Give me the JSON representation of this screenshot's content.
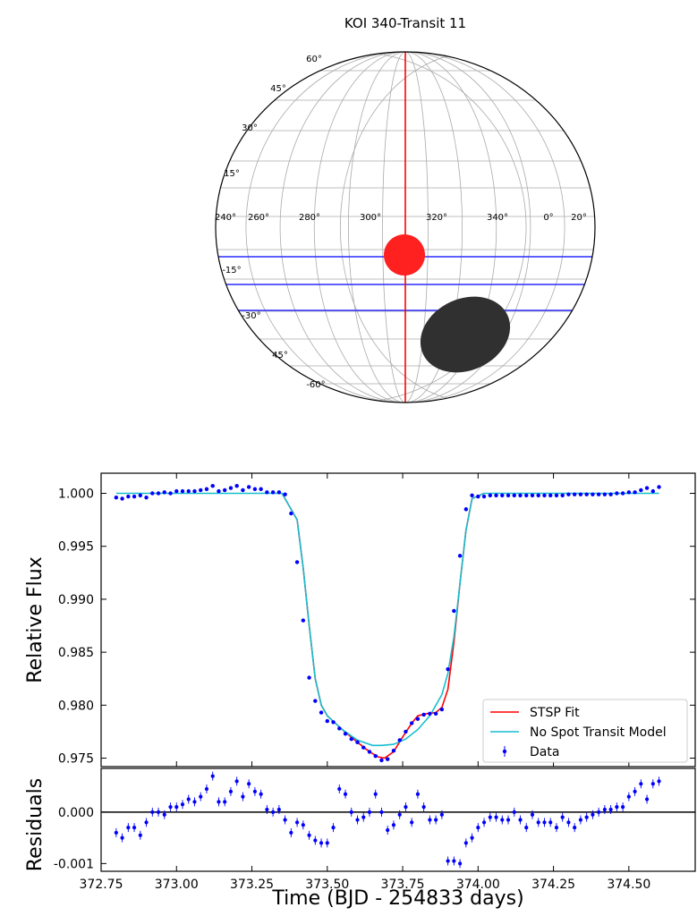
{
  "chart_data": [
    {
      "type": "diagram",
      "title": "KOI 340-Transit 11",
      "longitude_labels": [
        "240°",
        "260°",
        "280°",
        "300°",
        "320°",
        "340°",
        "0°",
        "20°"
      ],
      "latitude_labels": [
        "60°",
        "45°",
        "30°",
        "15°",
        "-15°",
        "-30°",
        "45°",
        "-60°"
      ],
      "colors": {
        "transit_chord": "#ff0000",
        "latitude_bands": "#2a2aff",
        "planet": "#ff2020",
        "spot": "#303030",
        "grid": "#aaaaaa"
      }
    },
    {
      "type": "line",
      "xlabel": "",
      "ylabel": "Relative Flux",
      "xlim": [
        372.75,
        374.72
      ],
      "ylim": [
        0.9742,
        1.0019
      ],
      "yticks": [
        "1.000",
        "0.995",
        "0.990",
        "0.985",
        "0.980",
        "0.975"
      ],
      "legend_position": "bottom-right",
      "series": [
        {
          "name": "STSP Fit",
          "color": "#ff0000",
          "x": [
            373.35,
            373.4,
            373.42,
            373.44,
            373.46,
            373.48,
            373.5,
            373.55,
            373.6,
            373.64,
            373.67,
            373.69,
            373.72,
            373.75,
            373.78,
            373.8,
            373.83,
            373.86,
            373.88,
            373.9,
            373.92,
            373.94,
            373.96,
            373.98,
            374.02
          ],
          "y": [
            1.0,
            0.9975,
            0.993,
            0.9875,
            0.9825,
            0.98,
            0.979,
            0.9777,
            0.9765,
            0.9756,
            0.9751,
            0.975,
            0.9756,
            0.977,
            0.9783,
            0.979,
            0.9792,
            0.9793,
            0.9798,
            0.9815,
            0.986,
            0.9915,
            0.9965,
            0.9995,
            1.0
          ]
        },
        {
          "name": "No Spot Transit Model",
          "color": "#17becf",
          "x": [
            372.8,
            373.35,
            373.4,
            373.42,
            373.44,
            373.46,
            373.48,
            373.5,
            373.55,
            373.6,
            373.65,
            373.68,
            373.72,
            373.76,
            373.8,
            373.84,
            373.88,
            373.9,
            373.92,
            373.94,
            373.96,
            373.98,
            374.02,
            374.6
          ],
          "y": [
            1.0,
            1.0,
            0.9975,
            0.993,
            0.9875,
            0.9825,
            0.98,
            0.979,
            0.9777,
            0.9767,
            0.9762,
            0.9762,
            0.9763,
            0.9768,
            0.9777,
            0.979,
            0.981,
            0.983,
            0.9865,
            0.9915,
            0.9965,
            0.9995,
            1.0,
            1.0
          ]
        },
        {
          "name": "Data",
          "color": "#0000ff",
          "x": [
            372.8,
            372.82,
            372.84,
            372.86,
            372.88,
            372.9,
            372.92,
            372.94,
            372.96,
            372.98,
            373.0,
            373.02,
            373.04,
            373.06,
            373.08,
            373.1,
            373.12,
            373.14,
            373.16,
            373.18,
            373.2,
            373.22,
            373.24,
            373.26,
            373.28,
            373.3,
            373.32,
            373.34,
            373.36,
            373.38,
            373.4,
            373.42,
            373.44,
            373.46,
            373.48,
            373.5,
            373.52,
            373.54,
            373.56,
            373.58,
            373.6,
            373.62,
            373.64,
            373.66,
            373.68,
            373.7,
            373.72,
            373.74,
            373.76,
            373.78,
            373.8,
            373.82,
            373.84,
            373.86,
            373.88,
            373.9,
            373.92,
            373.94,
            373.96,
            373.98,
            374.0,
            374.02,
            374.04,
            374.06,
            374.08,
            374.1,
            374.12,
            374.14,
            374.16,
            374.18,
            374.2,
            374.22,
            374.24,
            374.26,
            374.28,
            374.3,
            374.32,
            374.34,
            374.36,
            374.38,
            374.4,
            374.42,
            374.44,
            374.46,
            374.48,
            374.5,
            374.52,
            374.54,
            374.56,
            374.58,
            374.6
          ],
          "y": [
            0.9996,
            0.9995,
            0.9997,
            0.9997,
            0.9998,
            0.9996,
            1.0,
            1.0,
            1.0001,
            1.0,
            1.0002,
            1.0002,
            1.0002,
            1.0002,
            1.0003,
            1.0004,
            1.0007,
            1.0002,
            1.0003,
            1.0005,
            1.0007,
            1.0003,
            1.0006,
            1.0004,
            1.0004,
            1.0001,
            1.0001,
            1.0001,
            0.9999,
            0.9981,
            0.9935,
            0.988,
            0.9826,
            0.9804,
            0.9793,
            0.9785,
            0.9784,
            0.9778,
            0.9773,
            0.9768,
            0.9765,
            0.976,
            0.9756,
            0.9752,
            0.9748,
            0.9749,
            0.9757,
            0.9767,
            0.9775,
            0.9783,
            0.9787,
            0.9791,
            0.9792,
            0.9792,
            0.9796,
            0.9834,
            0.9889,
            0.9941,
            0.9985,
            0.9998,
            0.9997,
            0.9997,
            0.9998,
            0.9998,
            0.9998,
            0.9998,
            0.9998,
            0.9998,
            0.9998,
            0.9998,
            0.9998,
            0.9998,
            0.9998,
            0.9998,
            0.9998,
            0.9999,
            0.9999,
            0.9999,
            0.9999,
            0.9999,
            0.9999,
            0.9999,
            0.9999,
            1.0,
            1.0,
            1.0001,
            1.0001,
            1.0003,
            1.0005,
            1.0002,
            1.0006
          ]
        }
      ]
    },
    {
      "type": "scatter",
      "xlabel": "Time (BJD - 254833 days)",
      "ylabel": "Residuals",
      "xlim": [
        372.75,
        374.72
      ],
      "ylim": [
        -0.00115,
        0.00085
      ],
      "xticks": [
        "372.75",
        "373.00",
        "373.25",
        "373.50",
        "373.75",
        "374.00",
        "374.25",
        "374.50"
      ],
      "yticks": [
        "0.000",
        "-0.001"
      ],
      "series": [
        {
          "name": "Residuals",
          "color": "#0000ff",
          "x": [
            372.8,
            372.82,
            372.84,
            372.86,
            372.88,
            372.9,
            372.92,
            372.94,
            372.96,
            372.98,
            373.0,
            373.02,
            373.04,
            373.06,
            373.08,
            373.1,
            373.12,
            373.14,
            373.16,
            373.18,
            373.2,
            373.22,
            373.24,
            373.26,
            373.28,
            373.3,
            373.32,
            373.34,
            373.36,
            373.38,
            373.4,
            373.42,
            373.44,
            373.46,
            373.48,
            373.5,
            373.52,
            373.54,
            373.56,
            373.58,
            373.6,
            373.62,
            373.64,
            373.66,
            373.68,
            373.7,
            373.72,
            373.74,
            373.76,
            373.78,
            373.8,
            373.82,
            373.84,
            373.86,
            373.88,
            373.9,
            373.92,
            373.94,
            373.96,
            373.98,
            374.0,
            374.02,
            374.04,
            374.06,
            374.08,
            374.1,
            374.12,
            374.14,
            374.16,
            374.18,
            374.2,
            374.22,
            374.24,
            374.26,
            374.28,
            374.3,
            374.32,
            374.34,
            374.36,
            374.38,
            374.4,
            374.42,
            374.44,
            374.46,
            374.48,
            374.5,
            374.52,
            374.54,
            374.56,
            374.58,
            374.6
          ],
          "y": [
            -0.0004,
            -0.0005,
            -0.0003,
            -0.0003,
            -0.00045,
            -0.0002,
            0.0,
            0.0,
            -5e-05,
            0.0001,
            0.0001,
            0.00015,
            0.00025,
            0.0002,
            0.0003,
            0.00045,
            0.0007,
            0.0002,
            0.0002,
            0.0004,
            0.0006,
            0.0003,
            0.00055,
            0.0004,
            0.00035,
            5e-05,
            0.0,
            5e-05,
            -0.00015,
            -0.0004,
            -0.0002,
            -0.00025,
            -0.00045,
            -0.00055,
            -0.0006,
            -0.0006,
            -0.0003,
            0.00045,
            0.00035,
            0.0,
            -0.00015,
            -0.0001,
            0.0,
            0.00035,
            0.0,
            -0.00035,
            -0.00025,
            -5e-05,
            0.0001,
            -0.0002,
            0.00035,
            0.0001,
            -0.00015,
            -0.00015,
            -5e-05,
            -0.00095,
            -0.00095,
            -0.001,
            -0.0006,
            -0.0005,
            -0.0003,
            -0.0002,
            -0.0001,
            -0.0001,
            -0.00015,
            -0.00015,
            0.0,
            -0.00015,
            -0.0003,
            -5e-05,
            -0.0002,
            -0.0002,
            -0.0002,
            -0.0003,
            -0.0001,
            -0.0002,
            -0.0003,
            -0.00015,
            -0.0001,
            -5e-05,
            0.0,
            5e-05,
            5e-05,
            0.0001,
            0.0001,
            0.0003,
            0.0004,
            0.00055,
            0.00025,
            0.00055,
            0.0006
          ]
        }
      ]
    }
  ]
}
